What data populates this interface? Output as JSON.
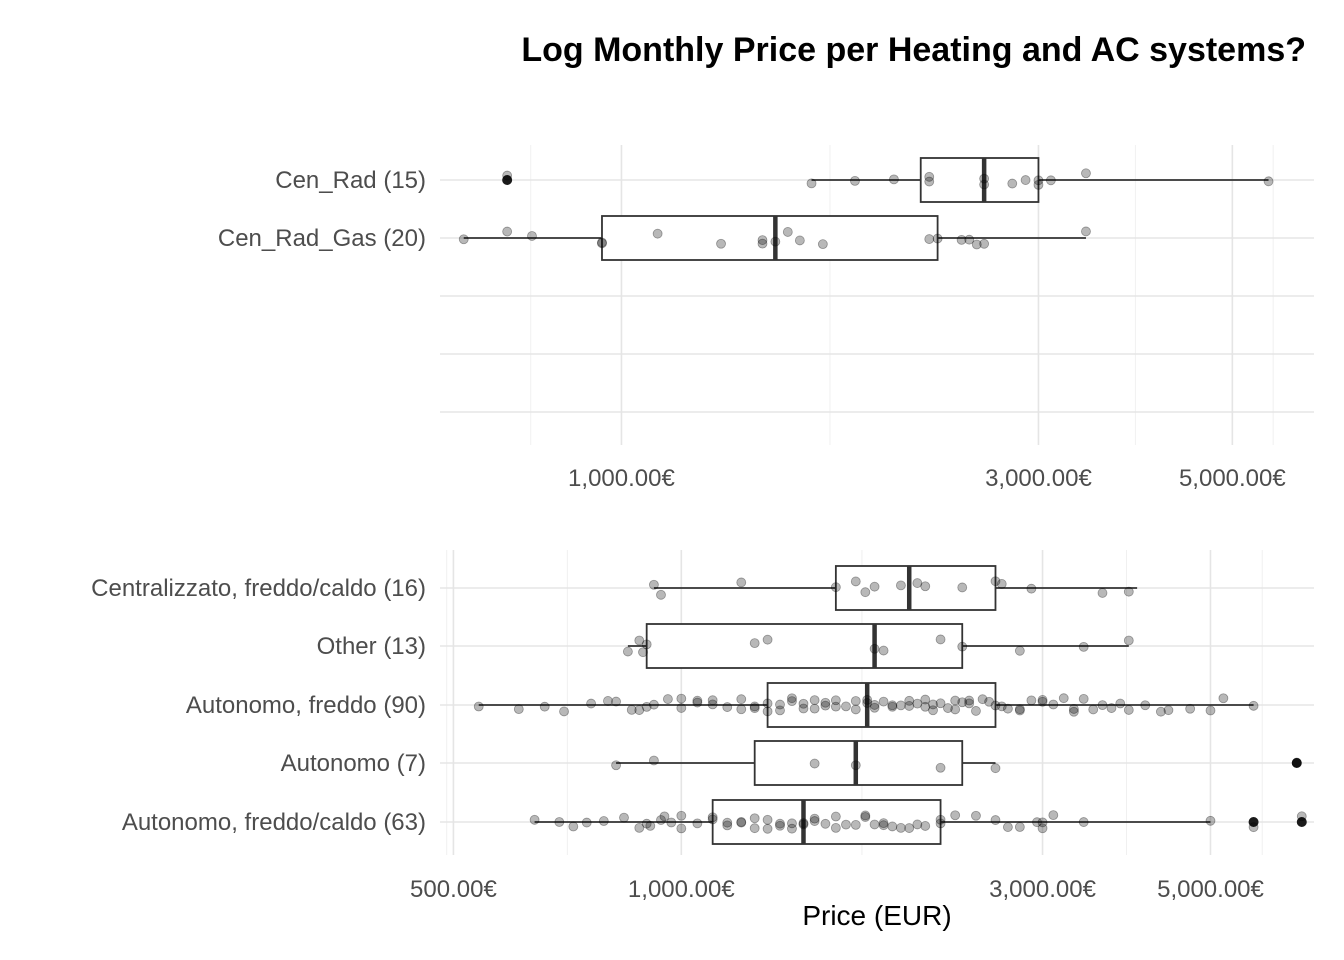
{
  "chart_data": {
    "title": "Log Monthly Price per Heating and AC systems?",
    "xlabel": "Price (EUR)",
    "x_scale": "log10",
    "panels": [
      {
        "type": "box",
        "orientation": "horizontal",
        "xlim": [
          620,
          6200
        ],
        "ticks": [
          1000,
          3000,
          5000
        ],
        "tick_labels": [
          "1,000.00€",
          "3,000.00€",
          "5,000.00€"
        ],
        "groups": [
          {
            "label": "Cen_Rad (15)",
            "whisker_low": 1650,
            "q1": 2200,
            "median": 2600,
            "q3": 3000,
            "whisker_high": 5500,
            "outliers": [
              740
            ],
            "points": [
              740,
              1650,
              1850,
              2050,
              2250,
              2600,
              2800,
              2900,
              3000,
              3100,
              3400,
              5500,
              2250,
              2600,
              3000
            ]
          },
          {
            "label": "Cen_Rad_Gas (20)",
            "whisker_low": 660,
            "q1": 950,
            "median": 1500,
            "q3": 2300,
            "whisker_high": 3400,
            "outliers": [],
            "points": [
              660,
              740,
              790,
              950,
              1100,
              1300,
              1450,
              1500,
              1550,
              1600,
              1700,
              2250,
              2300,
              2450,
              2500,
              2550,
              2600,
              3400,
              950,
              1450
            ]
          }
        ]
      },
      {
        "type": "box",
        "orientation": "horizontal",
        "xlim": [
          480,
          6850
        ],
        "ticks": [
          500,
          1000,
          3000,
          5000
        ],
        "tick_labels": [
          "500.00€",
          "1,000.00€",
          "3,000.00€",
          "5,000.00€"
        ],
        "groups": [
          {
            "label": "Centralizzato, freddo/caldo (16)",
            "whisker_low": 920,
            "q1": 1600,
            "median": 2000,
            "q3": 2600,
            "whisker_high": 4000,
            "outliers": [],
            "points": [
              920,
              940,
              1200,
              1600,
              1750,
              1800,
              1950,
              2050,
              2100,
              2350,
              2600,
              2650,
              2900,
              3600,
              3900,
              1700
            ]
          },
          {
            "label": "Other (13)",
            "whisker_low": 850,
            "q1": 900,
            "median": 1800,
            "q3": 2350,
            "whisker_high": 3900,
            "outliers": [],
            "points": [
              850,
              880,
              890,
              1250,
              1300,
              1800,
              1850,
              2200,
              2350,
              2800,
              3400,
              3900,
              900
            ]
          },
          {
            "label": "Autonomo, freddo (90)",
            "whisker_low": 540,
            "q1": 1300,
            "median": 1760,
            "q3": 2600,
            "whisker_high": 5700,
            "outliers": [],
            "points": [
              540,
              610,
              660,
              760,
              820,
              860,
              880,
              920,
              960,
              1000,
              1050,
              1100,
              1150,
              1200,
              1250,
              1300,
              1350,
              1400,
              1450,
              1500,
              1550,
              1600,
              1650,
              1700,
              1760,
              1800,
              1850,
              1900,
              1950,
              2000,
              2050,
              2100,
              2150,
              2200,
              2250,
              2300,
              2350,
              2400,
              2450,
              2500,
              2550,
              2600,
              2700,
              2800,
              2900,
              3000,
              3100,
              3200,
              3300,
              3400,
              3500,
              3700,
              3900,
              4100,
              4400,
              4700,
              5200,
              5700,
              1300,
              1400,
              1500,
              1760,
              1800,
              2000,
              2100,
              2300,
              1000,
              1100,
              1200,
              1600,
              1700,
              2800,
              3000,
              3300,
              900,
              1050,
              1250,
              1450,
              1550,
              1900,
              2150,
              2400,
              2650,
              3600,
              3800,
              4300,
              5000,
              700,
              800,
              1350
            ]
          },
          {
            "label": "Autonomo (7)",
            "whisker_low": 820,
            "q1": 1250,
            "median": 1700,
            "q3": 2350,
            "whisker_high": 2600,
            "outliers": [
              6500
            ],
            "points": [
              820,
              920,
              1500,
              1700,
              2200,
              2600,
              6500
            ]
          },
          {
            "label": "Autonomo, freddo/caldo (63)",
            "whisker_low": 640,
            "q1": 1100,
            "median": 1450,
            "q3": 2200,
            "whisker_high": 5000,
            "outliers": [
              5700,
              6600
            ],
            "points": [
              640,
              690,
              720,
              750,
              790,
              840,
              880,
              910,
              940,
              970,
              1000,
              1050,
              1100,
              1150,
              1200,
              1250,
              1300,
              1350,
              1400,
              1450,
              1500,
              1550,
              1600,
              1650,
              1700,
              1750,
              1800,
              1850,
              1900,
              1950,
              2000,
              2100,
              2200,
              2300,
              2450,
              2600,
              2800,
              2950,
              3000,
              3100,
              3400,
              5000,
              5700,
              6600,
              950,
              1000,
              1150,
              1200,
              1300,
              1450,
              1500,
              1600,
              1750,
              1850,
              2050,
              2200,
              2700,
              3000,
              900,
              1100,
              1250,
              1350,
              1400
            ]
          }
        ]
      }
    ]
  }
}
